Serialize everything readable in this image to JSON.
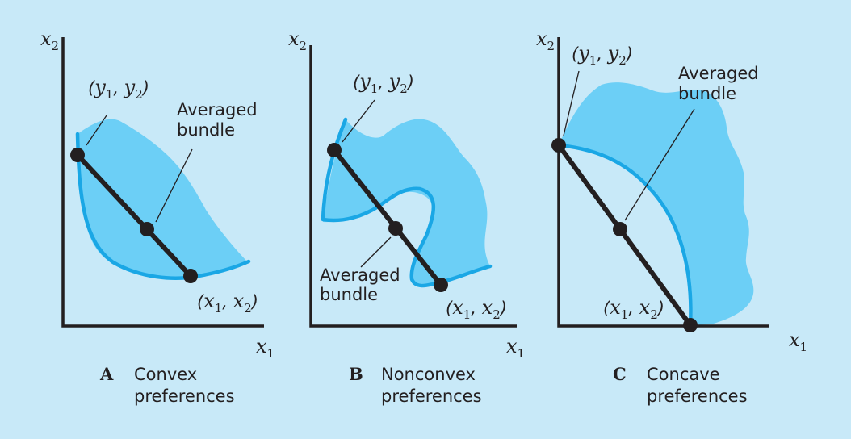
{
  "axis_labels": {
    "x_main": "x",
    "x_sub": "1",
    "y_main": "x",
    "y_sub": "2"
  },
  "point_labels": {
    "y_bundle": {
      "open": "(",
      "v1": "y",
      "s1": "1",
      "sep": ", ",
      "v2": "y",
      "s2": "2",
      "close": ")"
    },
    "x_bundle": {
      "open": "(",
      "v1": "x",
      "s1": "1",
      "sep": ", ",
      "v2": "x",
      "s2": "2",
      "close": ")"
    },
    "averaged": [
      "Averaged",
      "bundle"
    ]
  },
  "panels": [
    {
      "letter": "A",
      "caption": [
        "Convex",
        "preferences"
      ]
    },
    {
      "letter": "B",
      "caption": [
        "Nonconvex",
        "preferences"
      ]
    },
    {
      "letter": "C",
      "caption": [
        "Concave",
        "preferences"
      ]
    }
  ],
  "colors": {
    "background": "#c8e9f8",
    "preferred_region": "#6ccff6",
    "indifference_curve": "#1aa7e5",
    "ink": "#231f20"
  }
}
